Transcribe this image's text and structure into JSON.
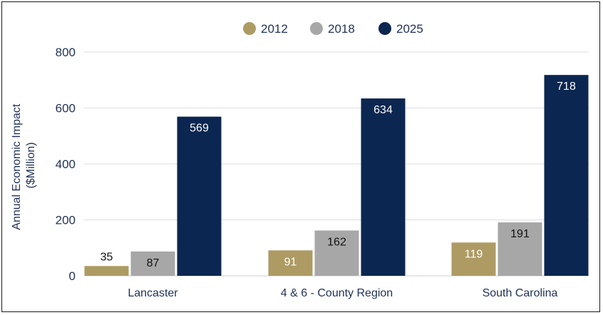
{
  "chart_data": {
    "type": "bar",
    "categories": [
      "Lancaster",
      "4 & 6 - County Region",
      "South Carolina"
    ],
    "series": [
      {
        "name": "2012",
        "values": [
          35,
          91,
          119
        ],
        "color": "#ad9b63",
        "label_color": "#ffffff"
      },
      {
        "name": "2018",
        "values": [
          87,
          162,
          191
        ],
        "color": "#a7a7a7",
        "label_color": "#111111"
      },
      {
        "name": "2025",
        "values": [
          569,
          634,
          718
        ],
        "color": "#0b2650",
        "label_color": "#ffffff"
      }
    ],
    "ylabel_lines": [
      "Annual Economic Impact",
      "($Million)"
    ],
    "ylim": [
      0,
      800
    ],
    "yticks": [
      0,
      200,
      400,
      600,
      800
    ],
    "grid": true,
    "legend_position": "top-center",
    "title": "",
    "xlabel": ""
  }
}
